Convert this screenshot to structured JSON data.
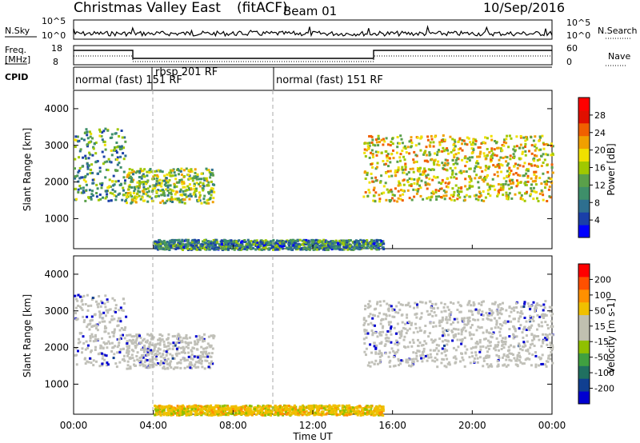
{
  "header": {
    "station": "Christmas Valley East",
    "processing": "(fitACF)",
    "beam_label": "Beam 01",
    "date": "10/Sep/2016"
  },
  "noise_panel": {
    "left_label": "N.Sky",
    "right_label": "N.Search",
    "tick_top": "10^5",
    "tick_bottom": "10^0",
    "right_tick_top": "10^5",
    "right_tick_bottom": "10^0"
  },
  "freq_panel": {
    "label_line1": "Freq.",
    "label_line2": "[MHz]",
    "right_label": "Nave",
    "left_ticks": [
      "18",
      "8"
    ],
    "right_ticks": [
      "60",
      "0"
    ],
    "cpid_label": "CPID"
  },
  "cpid_segments": [
    {
      "time": "00:00",
      "text": "normal (fast) 151 RF"
    },
    {
      "time": "03:50",
      "text": "rbsp 201 RF"
    },
    {
      "time": "10:00",
      "text": "normal (fast) 151 RF"
    }
  ],
  "time_axis": {
    "label": "Time UT",
    "ticks": [
      "00:00",
      "04:00",
      "08:00",
      "12:00",
      "16:00",
      "20:00",
      "00:00"
    ]
  },
  "colors": {
    "power_scale": [
      "#0000ff",
      "#1a3fa8",
      "#2e6f8f",
      "#3e8f6a",
      "#5aa04a",
      "#a0c800",
      "#f0e000",
      "#f0a000",
      "#f06000",
      "#e01000",
      "#ff0000"
    ],
    "velocity_scale": [
      "#ff0000",
      "#ff5000",
      "#ff9000",
      "#f0c000",
      "#c0c0b0",
      "#c0c0b0",
      "#90c000",
      "#40a040",
      "#207060",
      "#103f90",
      "#0000d0"
    ],
    "ground_scatter": "#c0c0b8"
  },
  "chart_data": [
    {
      "type": "heatmap",
      "title": "Christmas Valley East (fitACF) Beam 01",
      "xlabel": "Time UT",
      "ylabel": "Slant Range [km]",
      "ylim": [
        180,
        4500
      ],
      "xlim": [
        0,
        24
      ],
      "yticks": [
        1000,
        2000,
        3000,
        4000
      ],
      "colorbar": {
        "label": "Power [dB]",
        "ticks": [
          4,
          8,
          12,
          16,
          20,
          24,
          28
        ],
        "range": [
          0,
          30
        ]
      },
      "scatter_regions": [
        {
          "t0": 0.0,
          "t1": 2.6,
          "r0": 1500,
          "r1": 3500,
          "power": 10
        },
        {
          "t0": 2.6,
          "t1": 7.0,
          "r0": 1450,
          "r1": 2400,
          "power": 14
        },
        {
          "t0": 14.5,
          "t1": 24.0,
          "r0": 1500,
          "r1": 3300,
          "power": 18
        },
        {
          "t0": 4.0,
          "t1": 15.5,
          "r0": 180,
          "r1": 450,
          "power": 8
        }
      ]
    },
    {
      "type": "heatmap",
      "xlabel": "Time UT",
      "ylabel": "Slant Range [km]",
      "ylim": [
        180,
        4500
      ],
      "xlim": [
        0,
        24
      ],
      "yticks": [
        1000,
        2000,
        3000,
        4000
      ],
      "colorbar": {
        "label": "Velocity [m s-1]",
        "ticks": [
          "200",
          "100",
          "50",
          "15",
          "-15",
          "-50",
          "-100",
          "-200"
        ]
      },
      "scatter_regions": [
        {
          "t0": 0.0,
          "t1": 2.6,
          "r0": 1500,
          "r1": 3500,
          "velocity": 0
        },
        {
          "t0": 2.6,
          "t1": 7.0,
          "r0": 1450,
          "r1": 2400,
          "velocity": 0
        },
        {
          "t0": 14.5,
          "t1": 24.0,
          "r0": 1500,
          "r1": 3300,
          "velocity": 0
        },
        {
          "t0": 4.0,
          "t1": 15.5,
          "r0": 180,
          "r1": 450,
          "velocity": -60
        }
      ]
    }
  ]
}
